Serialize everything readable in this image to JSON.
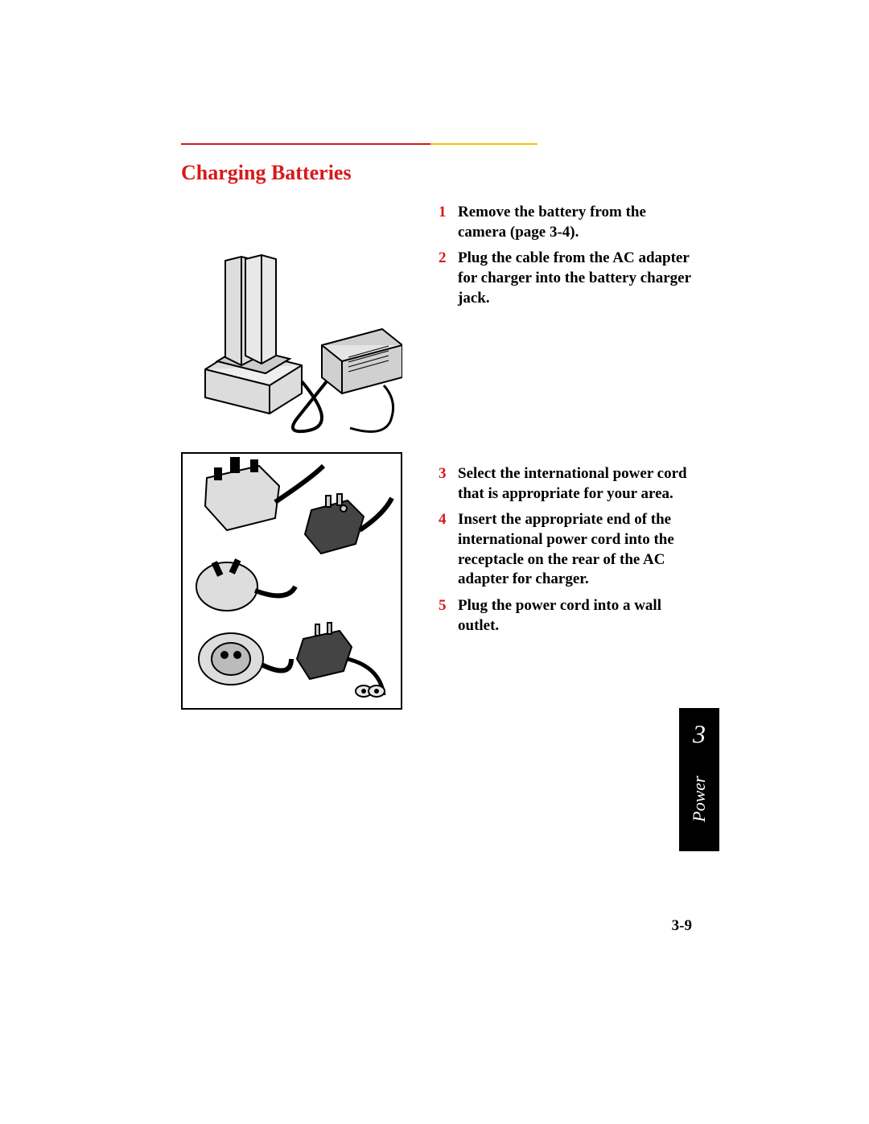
{
  "colors": {
    "accent_red": "#d7191c",
    "accent_yellow": "#f2c200",
    "text": "#000000",
    "background": "#ffffff",
    "tab_bg": "#000000",
    "tab_text": "#ffffff"
  },
  "section": {
    "title": "Charging Batteries"
  },
  "steps_block_a": [
    {
      "n": "1",
      "text": "Remove the battery from the camera (page 3-4)."
    },
    {
      "n": "2",
      "text": "Plug the cable from the AC adapter for charger into the battery charger jack."
    }
  ],
  "steps_block_b": [
    {
      "n": "3",
      "text": "Select the international power cord that is appropriate for your area."
    },
    {
      "n": "4",
      "text": "Insert the appropriate end of the international power cord into the receptacle on the rear of the AC adapter for charger."
    },
    {
      "n": "5",
      "text": "Plug the power cord into a wall outlet."
    }
  ],
  "sidebar": {
    "chapter_number": "3",
    "chapter_name": "Power"
  },
  "page_number": "3-9"
}
